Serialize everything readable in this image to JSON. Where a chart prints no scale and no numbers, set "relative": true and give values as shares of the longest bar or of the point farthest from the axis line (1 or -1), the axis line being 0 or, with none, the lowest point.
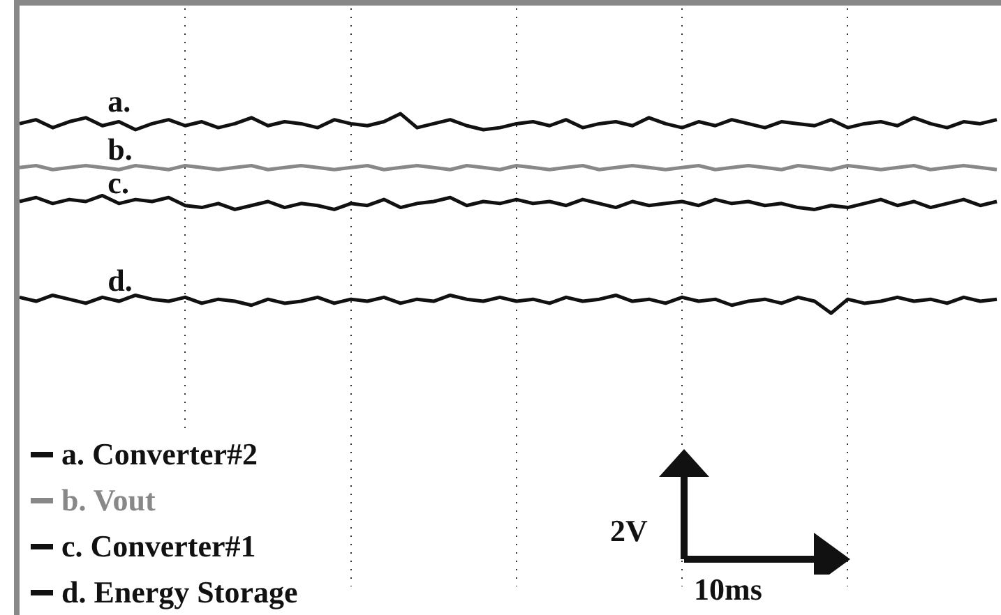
{
  "chart_data": {
    "type": "line",
    "relative": true,
    "grid": "x",
    "legend": "bottom left",
    "marker": "none",
    "line_style": "solid",
    "categories": [
      null,
      null,
      null,
      null,
      null,
      null,
      null,
      null,
      null,
      null,
      null,
      null,
      null,
      null,
      null,
      null,
      null,
      null,
      null,
      null,
      null,
      null,
      null,
      null,
      null,
      null,
      null,
      null,
      null,
      null,
      null,
      null,
      null,
      null,
      null,
      null,
      null,
      null,
      null,
      null,
      null,
      null,
      null,
      null,
      null,
      null,
      null,
      null,
      null,
      null,
      null,
      null,
      null,
      null,
      null,
      null,
      null,
      null,
      null,
      null
    ],
    "series": [
      {
        "name": "a. Converter#2",
        "color": "#111111",
        "values": [
          0.95,
          0.97,
          0.93,
          0.96,
          0.98,
          0.94,
          0.96,
          0.92,
          0.95,
          0.97,
          0.94,
          0.96,
          0.93,
          0.95,
          0.98,
          0.94,
          0.96,
          0.95,
          0.93,
          0.97,
          0.95,
          0.94,
          0.96,
          1,
          0.93,
          0.95,
          0.97,
          0.94,
          0.92,
          0.93,
          0.95,
          0.96,
          0.94,
          0.97,
          0.93,
          0.95,
          0.96,
          0.94,
          0.98,
          0.95,
          0.93,
          0.96,
          0.94,
          0.97,
          0.95,
          0.93,
          0.96,
          0.95,
          0.94,
          0.97,
          0.93,
          0.95,
          0.96,
          0.94,
          0.98,
          0.95,
          0.93,
          0.96,
          0.95,
          0.97
        ]
      },
      {
        "name": "b. Vout",
        "color": "#888888",
        "values": [
          0.73,
          0.74,
          0.72,
          0.73,
          0.74,
          0.73,
          0.72,
          0.74,
          0.73,
          0.72,
          0.74,
          0.73,
          0.72,
          0.73,
          0.74,
          0.72,
          0.73,
          0.74,
          0.73,
          0.72,
          0.73,
          0.74,
          0.72,
          0.73,
          0.74,
          0.73,
          0.72,
          0.74,
          0.73,
          0.72,
          0.74,
          0.73,
          0.72,
          0.73,
          0.74,
          0.72,
          0.73,
          0.74,
          0.73,
          0.72,
          0.73,
          0.74,
          0.72,
          0.73,
          0.74,
          0.73,
          0.72,
          0.74,
          0.73,
          0.72,
          0.74,
          0.73,
          0.72,
          0.73,
          0.74,
          0.72,
          0.73,
          0.74,
          0.73,
          0.72
        ]
      },
      {
        "name": "c. Converter#1",
        "color": "#111111",
        "values": [
          0.56,
          0.58,
          0.55,
          0.57,
          0.56,
          0.59,
          0.55,
          0.57,
          0.56,
          0.58,
          0.54,
          0.53,
          0.55,
          0.52,
          0.54,
          0.56,
          0.53,
          0.55,
          0.54,
          0.52,
          0.55,
          0.54,
          0.57,
          0.53,
          0.55,
          0.56,
          0.58,
          0.54,
          0.56,
          0.55,
          0.57,
          0.55,
          0.56,
          0.54,
          0.57,
          0.55,
          0.53,
          0.56,
          0.54,
          0.55,
          0.56,
          0.54,
          0.57,
          0.55,
          0.56,
          0.54,
          0.55,
          0.53,
          0.52,
          0.54,
          0.53,
          0.55,
          0.57,
          0.54,
          0.56,
          0.53,
          0.55,
          0.57,
          0.54,
          0.56
        ]
      },
      {
        "name": "d. Energy Storage",
        "color": "#111111",
        "values": [
          0.08,
          0.06,
          0.09,
          0.07,
          0.05,
          0.08,
          0.06,
          0.09,
          0.07,
          0.06,
          0.08,
          0.05,
          0.07,
          0.06,
          0.04,
          0.07,
          0.05,
          0.06,
          0.08,
          0.05,
          0.07,
          0.06,
          0.08,
          0.05,
          0.07,
          0.06,
          0.09,
          0.07,
          0.06,
          0.08,
          0.06,
          0.07,
          0.05,
          0.08,
          0.06,
          0.07,
          0.09,
          0.06,
          0.07,
          0.05,
          0.08,
          0.06,
          0.07,
          0.04,
          0.06,
          0.07,
          0.05,
          0.08,
          0.06,
          0,
          0.07,
          0.05,
          0.06,
          0.08,
          0.06,
          0.07,
          0.05,
          0.08,
          0.06,
          0.07
        ]
      }
    ],
    "annotations": [
      "a.",
      "b.",
      "c.",
      "d.",
      "2V",
      "10ms"
    ]
  }
}
